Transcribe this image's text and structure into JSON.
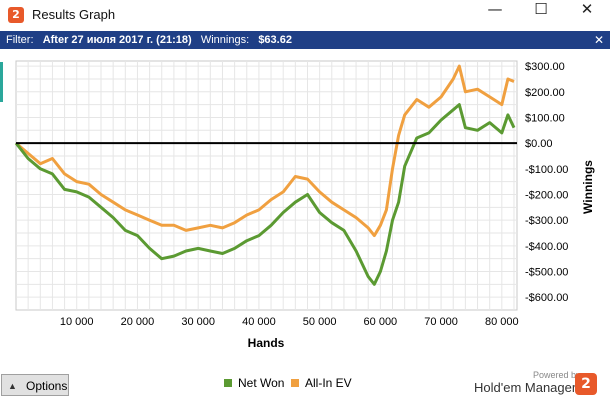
{
  "window": {
    "title": "Results Graph",
    "icon_glyph": "2",
    "controls": {
      "minimize": "—",
      "maximize": "☐",
      "close": "✕"
    }
  },
  "filter": {
    "label": "Filter:",
    "value": "After 27 июля 2017 г. (21:18)",
    "winnings_label": "Winnings:",
    "winnings_value": "$63.62",
    "close_glyph": "✕"
  },
  "bottom": {
    "options_label": "Options",
    "options_arrow": "▲",
    "powered_by": "Powered by",
    "brand_name": "Hold'em Manager",
    "brand_logo_glyph": "2"
  },
  "colors": {
    "net_won": "#5b9a32",
    "all_in_ev": "#f0a040",
    "title_bar": "#1f3f86",
    "accent": "#e8592a"
  },
  "chart_data": {
    "type": "line",
    "xlabel": "Hands",
    "ylabel": "Winnings",
    "x_ticks": [
      10000,
      20000,
      30000,
      40000,
      50000,
      60000,
      70000,
      80000
    ],
    "x_tick_labels": [
      "10 000",
      "20 000",
      "30 000",
      "40 000",
      "50 000",
      "60 000",
      "70 000",
      "80 000"
    ],
    "y_ticks": [
      300,
      200,
      100,
      0,
      -100,
      -200,
      -300,
      -400,
      -500,
      -600
    ],
    "y_tick_labels": [
      "$300.00",
      "$200.00",
      "$100.00",
      "$0.00",
      "-$100.00",
      "-$200.00",
      "-$300.00",
      "-$400.00",
      "-$500.00",
      "-$600.00"
    ],
    "xlim": [
      0,
      82500
    ],
    "ylim": [
      -650,
      320
    ],
    "grid": true,
    "legend_position": "bottom-center",
    "series": [
      {
        "name": "Net Won",
        "x": [
          0,
          2000,
          4000,
          6000,
          8000,
          10000,
          12000,
          14000,
          16000,
          18000,
          20000,
          22000,
          24000,
          26000,
          28000,
          30000,
          32000,
          34000,
          36000,
          38000,
          40000,
          42000,
          44000,
          46000,
          48000,
          50000,
          52000,
          54000,
          56000,
          58000,
          59000,
          60000,
          61000,
          62000,
          63000,
          64000,
          66000,
          68000,
          70000,
          72000,
          73000,
          74000,
          76000,
          78000,
          80000,
          81000,
          82000
        ],
        "y": [
          0,
          -60,
          -100,
          -120,
          -180,
          -190,
          -210,
          -250,
          -290,
          -340,
          -360,
          -410,
          -450,
          -440,
          -420,
          -410,
          -420,
          -430,
          -410,
          -380,
          -360,
          -320,
          -270,
          -230,
          -200,
          -270,
          -310,
          -340,
          -420,
          -520,
          -550,
          -500,
          -420,
          -300,
          -230,
          -90,
          20,
          40,
          90,
          130,
          150,
          60,
          50,
          80,
          40,
          110,
          60
        ]
      },
      {
        "name": "All-In EV",
        "x": [
          0,
          2000,
          4000,
          6000,
          8000,
          10000,
          12000,
          14000,
          16000,
          18000,
          20000,
          22000,
          24000,
          26000,
          28000,
          30000,
          32000,
          34000,
          36000,
          38000,
          40000,
          42000,
          44000,
          46000,
          48000,
          50000,
          52000,
          54000,
          56000,
          58000,
          59000,
          60000,
          61000,
          62000,
          63000,
          64000,
          66000,
          68000,
          70000,
          72000,
          73000,
          74000,
          76000,
          78000,
          80000,
          81000,
          82000
        ],
        "y": [
          0,
          -40,
          -80,
          -60,
          -120,
          -150,
          -160,
          -200,
          -230,
          -260,
          -280,
          -300,
          -320,
          -320,
          -340,
          -330,
          -320,
          -330,
          -310,
          -280,
          -260,
          -220,
          -190,
          -130,
          -140,
          -190,
          -230,
          -260,
          -290,
          -330,
          -360,
          -320,
          -260,
          -100,
          30,
          110,
          170,
          140,
          180,
          250,
          300,
          200,
          210,
          180,
          150,
          250,
          240
        ]
      }
    ]
  }
}
